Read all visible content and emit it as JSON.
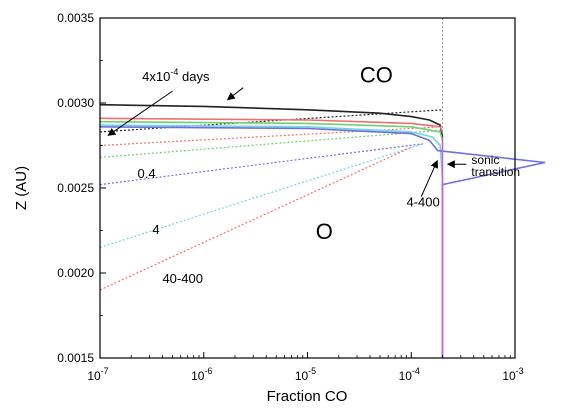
{
  "chart_data": {
    "type": "line",
    "title": "",
    "xlabel": "Fraction CO",
    "ylabel": "Z (AU)",
    "xscale": "log",
    "xlim": [
      1e-07,
      0.001
    ],
    "ylim": [
      0.0015,
      0.0035
    ],
    "x_ticks": [
      {
        "value": 1e-07,
        "mant": "10",
        "exp": "-7"
      },
      {
        "value": 1e-06,
        "mant": "10",
        "exp": "-6"
      },
      {
        "value": 1e-05,
        "mant": "10",
        "exp": "-5"
      },
      {
        "value": 0.0001,
        "mant": "10",
        "exp": "-4"
      },
      {
        "value": 0.001,
        "mant": "10",
        "exp": "-3"
      }
    ],
    "y_ticks": [
      {
        "value": 0.0015,
        "label": "0.0015"
      },
      {
        "value": 0.002,
        "label": "0.0020"
      },
      {
        "value": 0.0025,
        "label": "0.0025"
      },
      {
        "value": 0.003,
        "label": "0.0030"
      },
      {
        "value": 0.0035,
        "label": "0.0035"
      }
    ],
    "grid": false,
    "legend": "none",
    "sonic_line": {
      "x": 0.0002,
      "color": "#888888"
    },
    "series": [
      {
        "color": "#222222",
        "dash": true,
        "points": [
          [
            1e-07,
            0.00283
          ],
          [
            0.0002,
            0.00296
          ]
        ]
      },
      {
        "color": "#f07070",
        "dash": true,
        "points": [
          [
            1e-07,
            0.00275
          ],
          [
            0.0002,
            0.00286
          ]
        ]
      },
      {
        "color": "#70d070",
        "dash": true,
        "points": [
          [
            1e-07,
            0.00268
          ],
          [
            0.0002,
            0.00284
          ]
        ]
      },
      {
        "color": "#6f6fe0",
        "dash": true,
        "points": [
          [
            1e-07,
            0.00252
          ],
          [
            0.00013,
            0.00276
          ]
        ]
      },
      {
        "color": "#70d8e0",
        "dash": true,
        "points": [
          [
            1e-07,
            0.00215
          ],
          [
            0.00013,
            0.00276
          ]
        ]
      },
      {
        "color": "#f07070",
        "dash": true,
        "points": [
          [
            1e-07,
            0.0019
          ],
          [
            0.0001,
            0.00274
          ]
        ]
      },
      {
        "color": "#222222",
        "dash": false,
        "points": [
          [
            1e-07,
            0.00299
          ],
          [
            1e-06,
            0.00298
          ],
          [
            1e-05,
            0.00296
          ],
          [
            5e-05,
            0.00294
          ],
          [
            0.0001,
            0.00292
          ],
          [
            0.00015,
            0.0029
          ],
          [
            0.00019,
            0.00287
          ],
          [
            0.0002,
            0.0028
          ]
        ]
      },
      {
        "color": "#f07070",
        "dash": false,
        "points": [
          [
            1e-07,
            0.00291
          ],
          [
            1e-05,
            0.0029
          ],
          [
            0.0001,
            0.00288
          ],
          [
            0.00019,
            0.00286
          ],
          [
            0.0002,
            0.00283
          ]
        ]
      },
      {
        "color": "#70d070",
        "dash": false,
        "points": [
          [
            1e-07,
            0.00289
          ],
          [
            1e-05,
            0.00288
          ],
          [
            0.0001,
            0.00286
          ],
          [
            0.00019,
            0.00283
          ],
          [
            0.0002,
            0.00278
          ]
        ]
      },
      {
        "color": "#70d8e0",
        "dash": false,
        "points": [
          [
            1e-07,
            0.00287
          ],
          [
            1e-05,
            0.00286
          ],
          [
            0.0001,
            0.00283
          ],
          [
            0.00016,
            0.0028
          ],
          [
            0.00019,
            0.00275
          ],
          [
            0.0002,
            0.00255
          ],
          [
            0.0002,
            0.0015
          ]
        ]
      },
      {
        "color": "#6f6fe0",
        "dash": false,
        "points": [
          [
            1e-07,
            0.00286
          ],
          [
            1e-05,
            0.00285
          ],
          [
            0.0001,
            0.00282
          ],
          [
            0.00015,
            0.00278
          ],
          [
            0.00018,
            0.00272
          ],
          [
            0.00195,
            0.00265
          ],
          [
            0.0002,
            0.00252
          ],
          [
            0.0002,
            0.0015
          ]
        ]
      },
      {
        "color": "#d060d0",
        "dash": false,
        "points": [
          [
            0.0002,
            0.0028
          ],
          [
            0.0002,
            0.0015
          ]
        ]
      }
    ],
    "annotations": [
      {
        "id": "co-label",
        "text": "CO",
        "x": 3.2e-05,
        "y": 0.00312,
        "size": 22
      },
      {
        "id": "o-label",
        "text": "O",
        "x": 1.2e-05,
        "y": 0.0022,
        "size": 22
      },
      {
        "id": "label-04",
        "text": "0.4",
        "x": 2.3e-07,
        "y": 0.00256,
        "size": 13
      },
      {
        "id": "label-4",
        "text": "4",
        "x": 3.2e-07,
        "y": 0.00223,
        "size": 13
      },
      {
        "id": "label-40-400",
        "text": "40-400",
        "x": 4e-07,
        "y": 0.00194,
        "size": 13
      },
      {
        "id": "label-4-400",
        "text": "4-400",
        "x": 9e-05,
        "y": 0.00239,
        "size": 13
      },
      {
        "id": "sonic-line1",
        "text": "sonic",
        "x": 0.00038,
        "y": 0.00264,
        "size": 12
      },
      {
        "id": "sonic-line2",
        "text": "transition",
        "x": 0.00038,
        "y": 0.00257,
        "size": 12
      }
    ],
    "days_label": {
      "prefix": "4x10",
      "exp": "-4",
      "suffix": " days",
      "x": 2.55e-07,
      "y": 0.00313
    },
    "arrows": [
      {
        "id": "arrow-days-black",
        "from": [
          2.4e-06,
          0.00309
        ],
        "to": [
          1.7e-06,
          0.00302
        ]
      },
      {
        "id": "arrow-days-blue",
        "from": [
          5e-07,
          0.00307
        ],
        "to": [
          1.2e-07,
          0.00281
        ]
      },
      {
        "id": "arrow-4-400",
        "from": [
          0.000125,
          0.00245
        ],
        "to": [
          0.000178,
          0.00266
        ]
      },
      {
        "id": "arrow-sonic",
        "from": [
          0.00034,
          0.00264
        ],
        "to": [
          0.000225,
          0.00264
        ]
      }
    ]
  }
}
